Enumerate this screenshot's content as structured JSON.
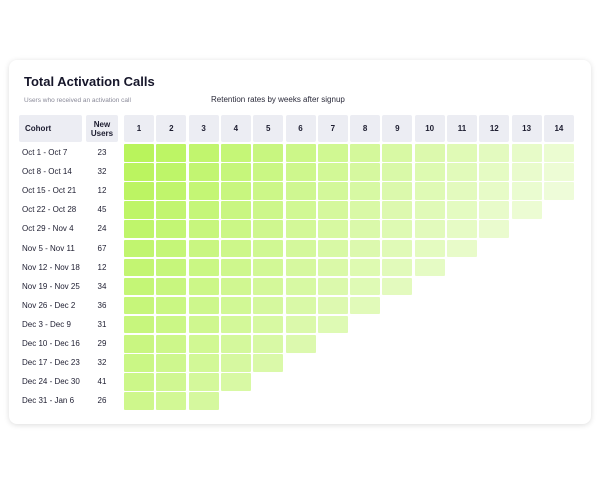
{
  "title": "Total Activation Calls",
  "subtitle": "Users who received an activation call",
  "retention_label": "Retention rates by weeks after signup",
  "headers": {
    "cohort": "Cohort",
    "new_users": "New Users",
    "weeks": [
      "1",
      "2",
      "3",
      "4",
      "5",
      "6",
      "7",
      "8",
      "9",
      "10",
      "11",
      "12",
      "13",
      "14"
    ]
  },
  "cohorts": [
    {
      "label": "Oct 1 - Oct 7",
      "users": "23",
      "weeks": 14
    },
    {
      "label": "Oct 8 - Oct 14",
      "users": "32",
      "weeks": 14
    },
    {
      "label": "Oct 15 - Oct 21",
      "users": "12",
      "weeks": 14
    },
    {
      "label": "Oct 22 - Oct 28",
      "users": "45",
      "weeks": 13
    },
    {
      "label": "Oct 29 - Nov 4",
      "users": "24",
      "weeks": 12
    },
    {
      "label": "Nov 5 - Nov 11",
      "users": "67",
      "weeks": 11
    },
    {
      "label": "Nov 12 - Nov 18",
      "users": "12",
      "weeks": 10
    },
    {
      "label": "Nov 19 - Nov 25",
      "users": "34",
      "weeks": 9
    },
    {
      "label": "Nov 26 - Dec 2",
      "users": "36",
      "weeks": 8
    },
    {
      "label": "Dec 3 - Dec 9",
      "users": "31",
      "weeks": 7
    },
    {
      "label": "Dec 10 - Dec 16",
      "users": "29",
      "weeks": 6
    },
    {
      "label": "Dec 17 - Dec 23",
      "users": "32",
      "weeks": 5
    },
    {
      "label": "Dec 24 - Dec 30",
      "users": "41",
      "weeks": 4
    },
    {
      "label": "Dec 31 - Jan 6",
      "users": "26",
      "weeks": 3
    }
  ],
  "colors": {
    "header_bg": "#ecedf3",
    "cell_strong": "#b9f45c",
    "cell_weak": "#f4fde6"
  }
}
